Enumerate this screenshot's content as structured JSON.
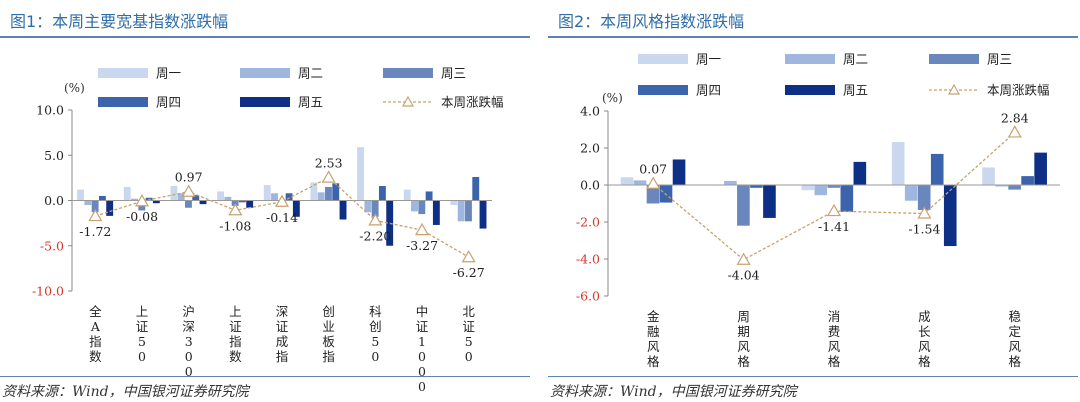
{
  "panels": [
    {
      "title": "图1：本周主要宽基指数涨跌幅",
      "source": "资料来源：Wind，中国银河证券研究院"
    },
    {
      "title": "图2：本周风格指数涨跌幅",
      "source": "资料来源：Wind，中国银河证券研究院"
    }
  ],
  "colors": {
    "周一": "#c9d8ee",
    "周二": "#9fb6de",
    "周三": "#6a87bd",
    "周四": "#3b64ad",
    "周五": "#0e2f86",
    "本周涨跌幅": "#c8a26e",
    "title": "#2f6ea8",
    "rule": "#5b83b8",
    "axis_red": "#d9342b"
  },
  "chart_data": [
    {
      "type": "bar",
      "unit": "(%)",
      "ylim": [
        -10,
        10
      ],
      "yticks": [
        "10.0",
        "5.0",
        "0.0",
        "-5.0",
        "-10.0"
      ],
      "ytick_values": [
        10,
        5,
        0,
        -5,
        -10
      ],
      "ytick_color": "red",
      "grid": false,
      "legend": "top",
      "categories": [
        "全A指数",
        "上证50",
        "沪深300",
        "上证指数",
        "深证成指",
        "创业板指",
        "科创50",
        "中证1000",
        "北证50"
      ],
      "series": [
        {
          "name": "周一",
          "values": [
            1.2,
            1.5,
            1.6,
            1.0,
            1.7,
            2.0,
            5.9,
            1.2,
            -0.5
          ]
        },
        {
          "name": "周二",
          "values": [
            -0.5,
            0.2,
            0.8,
            0.4,
            0.8,
            0.9,
            -1.3,
            -1.2,
            -2.3
          ]
        },
        {
          "name": "周三",
          "values": [
            -1.3,
            -1.1,
            -0.8,
            -0.6,
            -0.2,
            1.5,
            -1.8,
            -1.5,
            -2.3
          ]
        },
        {
          "name": "周四",
          "values": [
            0.5,
            0.3,
            0.6,
            -0.2,
            0.8,
            1.9,
            1.6,
            1.0,
            2.6
          ]
        },
        {
          "name": "周五",
          "values": [
            -1.7,
            -0.3,
            -0.4,
            -0.8,
            -1.8,
            -2.1,
            -5.0,
            -2.7,
            -3.1
          ]
        }
      ],
      "line": {
        "name": "本周涨跌幅",
        "values": [
          -1.72,
          -0.08,
          0.97,
          -1.08,
          -0.14,
          2.53,
          -2.2,
          -3.27,
          -6.27
        ],
        "labels": [
          "-1.72",
          "-0.08",
          "0.97",
          "-1.08",
          "-0.14",
          "2.53",
          "-2.20",
          "-3.27",
          "-6.27"
        ],
        "label_pos": [
          "below",
          "below",
          "above",
          "below",
          "below",
          "above",
          "below",
          "below",
          "below"
        ]
      }
    },
    {
      "type": "bar",
      "unit": "(%)",
      "ylim": [
        -6,
        4
      ],
      "yticks": [
        "4.0",
        "2.0",
        "0.0",
        "-2.0",
        "-4.0",
        "-6.0"
      ],
      "ytick_values": [
        4,
        2,
        0,
        -2,
        -4,
        -6
      ],
      "ytick_color": "red",
      "grid": false,
      "legend": "top",
      "categories": [
        "金融风格",
        "周期风格",
        "消费风格",
        "成长风格",
        "稳定风格"
      ],
      "series": [
        {
          "name": "周一",
          "values": [
            0.42,
            -0.02,
            -0.28,
            2.32,
            0.95
          ]
        },
        {
          "name": "周二",
          "values": [
            0.25,
            0.22,
            -0.55,
            -0.85,
            -0.08
          ]
        },
        {
          "name": "周三",
          "values": [
            -1.0,
            -2.2,
            -0.15,
            -1.35,
            -0.25
          ]
        },
        {
          "name": "周四",
          "values": [
            -0.95,
            -0.15,
            -1.45,
            1.68,
            0.48
          ]
        },
        {
          "name": "周五",
          "values": [
            1.38,
            -1.78,
            1.25,
            -3.3,
            1.75
          ]
        }
      ],
      "line": {
        "name": "本周涨跌幅",
        "values": [
          0.07,
          -4.04,
          -1.41,
          -1.54,
          2.84
        ],
        "labels": [
          "0.07",
          "-4.04",
          "-1.41",
          "-1.54",
          "2.84"
        ],
        "label_pos": [
          "above",
          "below",
          "below",
          "below",
          "above"
        ]
      }
    }
  ]
}
